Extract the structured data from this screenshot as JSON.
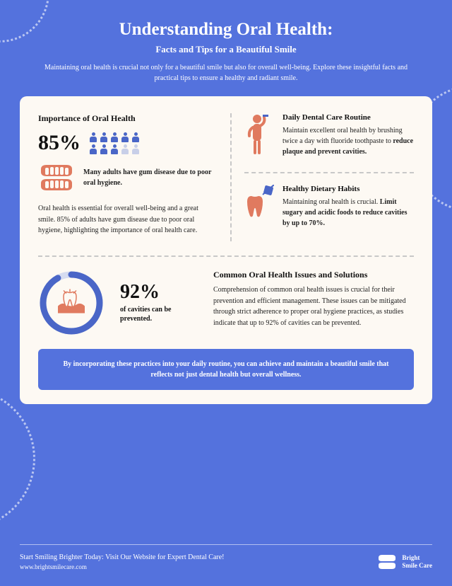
{
  "colors": {
    "bg": "#5472dd",
    "card": "#fdf9f3",
    "accent": "#e07a5f",
    "accentBlue": "#4a66c7",
    "text": "#222222",
    "white": "#ffffff",
    "gray": "#c8c8c8"
  },
  "header": {
    "title": "Understanding Oral Health:",
    "subtitle": "Facts and Tips for a Beautiful Smile",
    "intro": "Maintaining oral health is crucial not only for a beautiful smile but also for overall well-being. Explore these insightful facts and practical tips to ensure a healthy and radiant smile."
  },
  "importance": {
    "title": "Importance of Oral Health",
    "stat": "85%",
    "people": {
      "total": 10,
      "highlighted": 8,
      "colorOn": "#4a66c7",
      "colorOff": "#c8cfe8"
    },
    "caption": "Many adults have gum disease due to poor oral hygiene.",
    "paragraph": "Oral health is essential for overall well-being and a great smile. 85% of adults have gum disease due to poor oral hygiene, highlighting the importance of oral health care."
  },
  "rightItems": [
    {
      "icon": "brushing-person",
      "title": "Daily Dental Care Routine",
      "text_prefix": "Maintain excellent oral health by brushing twice a day with fluoride toothpaste to ",
      "text_bold": "reduce plaque and prevent cavities."
    },
    {
      "icon": "tooth-nosugar",
      "title": "Healthy Dietary Habits",
      "text_prefix": "Maintaining oral health is crucial. ",
      "text_bold": "Limit sugary and acidic foods to reduce cavities by up to 70%."
    }
  ],
  "bottom": {
    "donut": {
      "percent": 92,
      "ringColor": "#4a66c7",
      "trackColor": "#d6dcf0",
      "thickness": 9
    },
    "stat": "92%",
    "statLabel": "of cavities can be prevented.",
    "title": "Common Oral Health Issues and Solutions",
    "paragraph": "Comprehension of common oral health issues is crucial for their prevention and efficient management. These issues can be mitigated through strict adherence to proper oral hygiene practices, as studies indicate that up to 92% of cavities can be prevented."
  },
  "callout": "By incorporating these practices into your daily routine, you can achieve and maintain a beautiful smile that reflects not just dental health but overall wellness.",
  "footer": {
    "cta": "Start Smiling Brighter Today: Visit Our Website for Expert Dental Care!",
    "url": "www.brightsmilecare.com",
    "brandLine1": "Bright",
    "brandLine2": "Smile Care"
  }
}
